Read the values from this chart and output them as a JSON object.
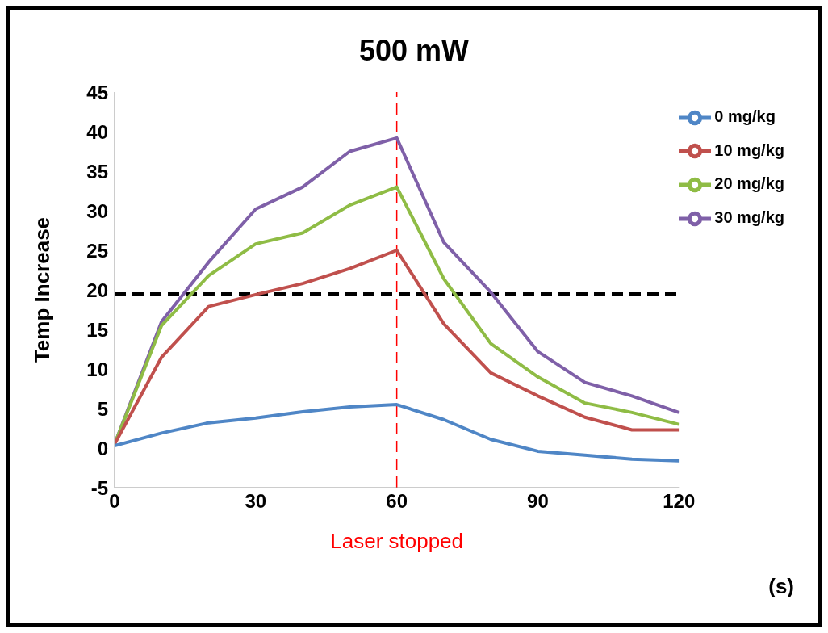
{
  "chart_data": {
    "type": "line",
    "title": "500 mW",
    "xlabel": "(s)",
    "ylabel": "Temp Increase",
    "x": [
      0,
      10,
      20,
      30,
      40,
      50,
      60,
      70,
      80,
      90,
      100,
      110,
      120
    ],
    "series": [
      {
        "name": "30 mg/kg",
        "color": "#7f60a8",
        "values": [
          0.5,
          16,
          23.5,
          30.2,
          33,
          37.5,
          39.2,
          26,
          19.7,
          12.2,
          8.3,
          6.6,
          4.5
        ]
      },
      {
        "name": "20 mg/kg",
        "color": "#8fbc45",
        "values": [
          0.5,
          15.5,
          21.8,
          25.8,
          27.2,
          30.7,
          33,
          21.4,
          13.2,
          9,
          5.7,
          4.5,
          3
        ]
      },
      {
        "name": "10 mg/kg",
        "color": "#c0504d",
        "values": [
          0.5,
          11.5,
          17.9,
          19.4,
          20.8,
          22.7,
          25,
          15.7,
          9.5,
          6.6,
          3.9,
          2.3,
          2.3
        ]
      },
      {
        "name": "0 mg/kg",
        "color": "#4f86c6",
        "values": [
          0.3,
          1.9,
          3.2,
          3.8,
          4.6,
          5.2,
          5.5,
          3.6,
          1.1,
          -0.4,
          -0.9,
          -1.4,
          -1.6
        ]
      }
    ],
    "xlim": [
      0,
      120
    ],
    "xticks": [
      0,
      30,
      60,
      90,
      120
    ],
    "ylim": [
      -5,
      45
    ],
    "yticks": [
      -5,
      0,
      5,
      10,
      15,
      20,
      25,
      30,
      35,
      40,
      45
    ],
    "ref_lines": [
      {
        "axis": "y",
        "value": 19.5,
        "color": "#000000",
        "line_style": "dashed"
      },
      {
        "axis": "x",
        "value": 60,
        "label": "Laser stopped",
        "color": "#ff0000",
        "line_style": "dashed"
      }
    ],
    "grid": false,
    "legend": "top right",
    "marker": "none",
    "line_style": "solid"
  }
}
